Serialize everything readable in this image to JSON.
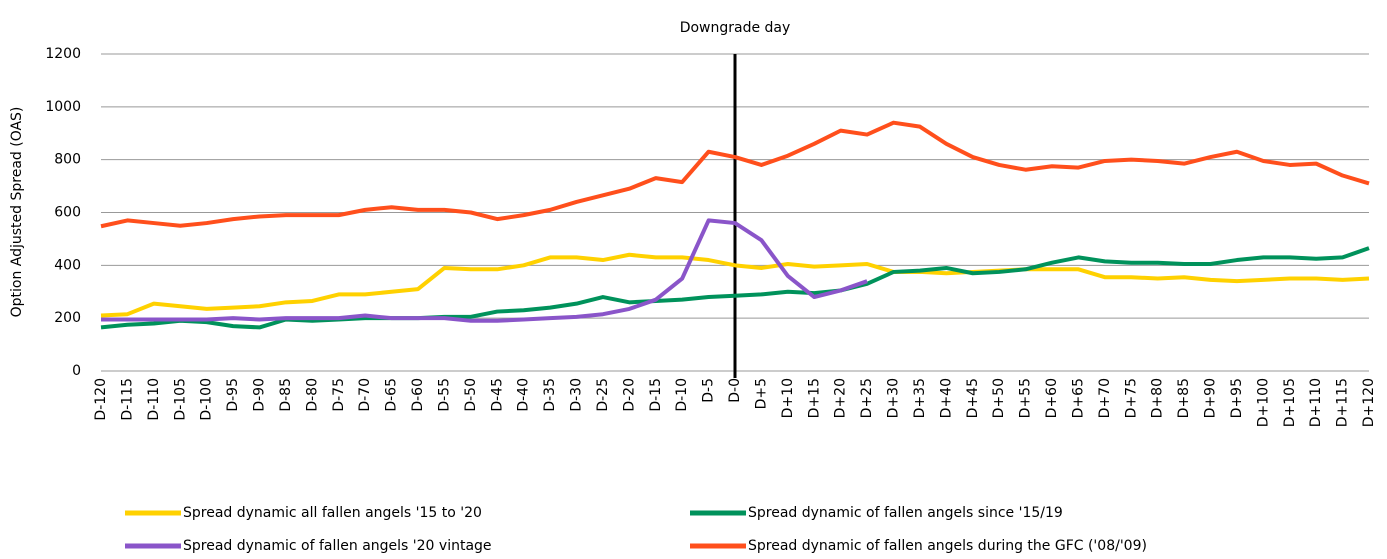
{
  "chart_data": {
    "type": "line",
    "ylabel": "Option Adjusted Spread (OAS)",
    "annotation": {
      "text": "Downgrade day",
      "x": 0
    },
    "x": [
      -120,
      -115,
      -110,
      -105,
      -100,
      -95,
      -90,
      -85,
      -80,
      -75,
      -70,
      -65,
      -60,
      -55,
      -50,
      -45,
      -40,
      -35,
      -30,
      -25,
      -20,
      -15,
      -10,
      -5,
      0,
      5,
      10,
      15,
      20,
      25,
      30,
      35,
      40,
      45,
      50,
      55,
      60,
      65,
      70,
      75,
      80,
      85,
      90,
      95,
      100,
      105,
      110,
      115,
      120
    ],
    "xlim": [
      -120,
      120
    ],
    "xticks": [
      {
        "value": -120,
        "label": "D-120"
      },
      {
        "value": -115,
        "label": "D-115"
      },
      {
        "value": -110,
        "label": "D-110"
      },
      {
        "value": -105,
        "label": "D-105"
      },
      {
        "value": -100,
        "label": "D-100"
      },
      {
        "value": -95,
        "label": "D-95"
      },
      {
        "value": -90,
        "label": "D-90"
      },
      {
        "value": -85,
        "label": "D-85"
      },
      {
        "value": -80,
        "label": "D-80"
      },
      {
        "value": -75,
        "label": "D-75"
      },
      {
        "value": -70,
        "label": "D-70"
      },
      {
        "value": -65,
        "label": "D-65"
      },
      {
        "value": -60,
        "label": "D-60"
      },
      {
        "value": -55,
        "label": "D-55"
      },
      {
        "value": -50,
        "label": "D-50"
      },
      {
        "value": -45,
        "label": "D-45"
      },
      {
        "value": -40,
        "label": "D-40"
      },
      {
        "value": -35,
        "label": "D-35"
      },
      {
        "value": -30,
        "label": "D-30"
      },
      {
        "value": -25,
        "label": "D-25"
      },
      {
        "value": -20,
        "label": "D-20"
      },
      {
        "value": -15,
        "label": "D-15"
      },
      {
        "value": -10,
        "label": "D-10"
      },
      {
        "value": -5,
        "label": "D-5"
      },
      {
        "value": 0,
        "label": "D-0"
      },
      {
        "value": 5,
        "label": "D+5"
      },
      {
        "value": 10,
        "label": "D+10"
      },
      {
        "value": 15,
        "label": "D+15"
      },
      {
        "value": 20,
        "label": "D+20"
      },
      {
        "value": 25,
        "label": "D+25"
      },
      {
        "value": 30,
        "label": "D+30"
      },
      {
        "value": 35,
        "label": "D+35"
      },
      {
        "value": 40,
        "label": "D+40"
      },
      {
        "value": 45,
        "label": "D+45"
      },
      {
        "value": 50,
        "label": "D+50"
      },
      {
        "value": 55,
        "label": "D+55"
      },
      {
        "value": 60,
        "label": "D+60"
      },
      {
        "value": 65,
        "label": "D+65"
      },
      {
        "value": 70,
        "label": "D+70"
      },
      {
        "value": 75,
        "label": "D+75"
      },
      {
        "value": 80,
        "label": "D+80"
      },
      {
        "value": 85,
        "label": "D+85"
      },
      {
        "value": 90,
        "label": "D+90"
      },
      {
        "value": 95,
        "label": "D+95"
      },
      {
        "value": 100,
        "label": "D+100"
      },
      {
        "value": 105,
        "label": "D+105"
      },
      {
        "value": 110,
        "label": "D+110"
      },
      {
        "value": 115,
        "label": "D+115"
      },
      {
        "value": 120,
        "label": "D+120"
      }
    ],
    "ylim": [
      0,
      1200
    ],
    "yticks": [
      0,
      200,
      400,
      600,
      800,
      1000,
      1200
    ],
    "grid": true,
    "series": [
      {
        "name": "Spread dynamic all fallen angels '15 to '20",
        "color": "#ffd100",
        "values": [
          210,
          215,
          255,
          245,
          235,
          240,
          245,
          260,
          265,
          290,
          290,
          300,
          310,
          390,
          385,
          385,
          400,
          430,
          430,
          420,
          440,
          430,
          430,
          420,
          400,
          390,
          405,
          395,
          400,
          405,
          375,
          375,
          370,
          375,
          380,
          385,
          385,
          385,
          355,
          355,
          350,
          355,
          345,
          340,
          345,
          350,
          350,
          345,
          350
        ]
      },
      {
        "name": "Spread dynamic of fallen angels since '15/19",
        "color": "#00925b",
        "values": [
          165,
          175,
          180,
          190,
          185,
          170,
          165,
          195,
          190,
          195,
          200,
          200,
          200,
          205,
          205,
          225,
          230,
          240,
          255,
          280,
          260,
          265,
          270,
          280,
          285,
          290,
          300,
          295,
          305,
          330,
          375,
          380,
          390,
          370,
          375,
          385,
          410,
          430,
          415,
          410,
          410,
          405,
          405,
          420,
          430,
          430,
          425,
          430,
          465
        ]
      },
      {
        "name": "Spread dynamic of fallen angels '20 vintage",
        "color": "#8a55c9",
        "values": [
          195,
          195,
          195,
          195,
          195,
          200,
          195,
          200,
          200,
          200,
          210,
          200,
          200,
          200,
          190,
          190,
          195,
          200,
          205,
          215,
          235,
          270,
          350,
          570,
          560,
          495,
          360,
          280,
          305,
          340,
          null,
          null,
          null,
          null,
          null,
          null,
          null,
          null,
          null,
          null,
          null,
          null,
          null,
          null,
          null,
          null,
          null,
          null,
          null
        ]
      },
      {
        "name": "Spread dynamic of fallen angels during the GFC ('08/'09)",
        "color": "#ff4f1c",
        "values": [
          548,
          570,
          560,
          550,
          560,
          575,
          585,
          590,
          590,
          590,
          610,
          620,
          610,
          610,
          600,
          575,
          590,
          610,
          640,
          665,
          690,
          730,
          715,
          830,
          810,
          780,
          815,
          860,
          910,
          895,
          940,
          925,
          860,
          810,
          780,
          762,
          775,
          770,
          795,
          800,
          795,
          785,
          810,
          830,
          795,
          780,
          785,
          740,
          710
        ]
      }
    ]
  }
}
